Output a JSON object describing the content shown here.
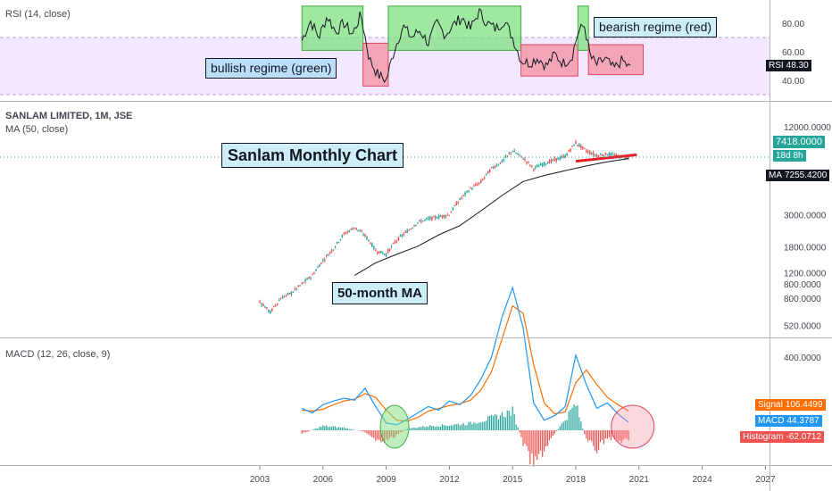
{
  "rsi_panel": {
    "title": "RSI (14, close)",
    "value_label": "RSI",
    "value": "48.30"
  },
  "price_panel": {
    "symbol_line": "SANLAM LIMITED, 1M, JSE",
    "ma_line": "MA (50, close)",
    "last_price": "7418.0000",
    "countdown": "18d 8h",
    "ma_label": "MA",
    "ma_value": "7255.4200"
  },
  "macd_panel": {
    "title": "MACD (12, 26, close, 9)",
    "signal_label": "Signal",
    "signal_value": "106.4499",
    "macd_label": "MACD",
    "macd_value": "44.3787",
    "hist_label": "Histogram",
    "hist_value": "-62.0712"
  },
  "annotations": {
    "bullish": "bullish regime (green)",
    "bearish": "bearish regime (red)",
    "chart_title": "Sanlam Monthly Chart",
    "ma_note": "50-month MA"
  },
  "colors": {
    "bull_candle": "#26a69a",
    "bear_candle": "#ef5350",
    "ma_line": "#131722",
    "rsi_line": "#131722",
    "rsi_band": "#f3e8ff",
    "macd_line": "#2196f3",
    "signal_line": "#ff6d00",
    "bull_zone": "#7fe07f",
    "bear_zone": "#f48fa0",
    "trendline": "#e8202a"
  },
  "chart_data": [
    {
      "type": "line",
      "name": "RSI pane",
      "title": "RSI (14, close)",
      "yticks": [
        "80.00",
        "60.00",
        "40.00"
      ],
      "ylim": [
        25,
        95
      ],
      "levels": [
        70,
        30
      ],
      "regime_zones": [
        {
          "regime": "bullish",
          "start": 2005.0,
          "end": 2007.9,
          "low": 61,
          "high": 92
        },
        {
          "regime": "bearish",
          "start": 2007.9,
          "end": 2009.1,
          "low": 36,
          "high": 66
        },
        {
          "regime": "bullish",
          "start": 2009.1,
          "end": 2015.4,
          "low": 61,
          "high": 92
        },
        {
          "regime": "bearish",
          "start": 2015.4,
          "end": 2018.1,
          "low": 43,
          "high": 65
        },
        {
          "regime": "bullish",
          "start": 2018.1,
          "end": 2018.6,
          "low": 61,
          "high": 92
        },
        {
          "regime": "bearish",
          "start": 2018.6,
          "end": 2021.2,
          "low": 44,
          "high": 65
        }
      ],
      "series": [
        {
          "x": [
            2005.0,
            2005.4,
            2005.8,
            2006.2,
            2006.6,
            2007.0,
            2007.4,
            2007.8,
            2008.2,
            2008.6,
            2009.0,
            2009.4,
            2009.8,
            2010.2,
            2010.6,
            2011.0,
            2011.4,
            2011.8,
            2012.2,
            2012.6,
            2013.0,
            2013.4,
            2013.8,
            2014.2,
            2014.6,
            2015.0,
            2015.4,
            2015.8,
            2016.2,
            2016.6,
            2017.0,
            2017.4,
            2017.8,
            2018.1,
            2018.4,
            2018.7,
            2019.0,
            2019.4,
            2019.8,
            2020.2,
            2020.6
          ],
          "values": [
            68,
            82,
            70,
            85,
            74,
            80,
            72,
            86,
            55,
            44,
            40,
            62,
            78,
            70,
            75,
            66,
            80,
            72,
            79,
            84,
            76,
            88,
            80,
            76,
            82,
            70,
            54,
            52,
            56,
            50,
            58,
            52,
            56,
            73,
            79,
            56,
            51,
            55,
            48,
            54,
            48
          ]
        }
      ]
    },
    {
      "type": "line",
      "name": "Price pane",
      "title": "SANLAM LIMITED, 1M, JSE",
      "scale": "log",
      "yticks": [
        "12000.0000",
        "7418.0000",
        "3000.0000",
        "1800.0000",
        "1200.0000",
        "800.0000",
        "520.0000"
      ],
      "series": [
        {
          "x": [
            2003.0,
            2003.5,
            2004.0,
            2004.5,
            2005.0,
            2005.5,
            2006.0,
            2006.5,
            2007.0,
            2007.5,
            2008.0,
            2008.5,
            2009.0,
            2009.5,
            2010.0,
            2010.5,
            2011.0,
            2011.5,
            2012.0,
            2012.5,
            2013.0,
            2013.5,
            2014.0,
            2014.5,
            2015.0,
            2015.5,
            2016.0,
            2016.5,
            2017.0,
            2017.5,
            2018.0,
            2018.5,
            2019.0,
            2019.5,
            2020.0,
            2020.5
          ],
          "values": [
            760,
            640,
            800,
            870,
            1000,
            1150,
            1450,
            1750,
            2200,
            2450,
            2150,
            1700,
            1600,
            2000,
            2300,
            2650,
            2800,
            2900,
            3000,
            3800,
            4500,
            5000,
            6200,
            6900,
            8200,
            7300,
            6200,
            6700,
            7100,
            7500,
            9300,
            8200,
            7600,
            7800,
            7500,
            7418
          ]
        },
        {
          "x": [
            2007.5,
            2008.5,
            2009.5,
            2010.5,
            2011.5,
            2012.5,
            2013.5,
            2014.5,
            2015.5,
            2016.5,
            2017.5,
            2018.5,
            2019.5,
            2020.5
          ],
          "values": [
            1150,
            1400,
            1600,
            1820,
            2180,
            2520,
            3180,
            4050,
            5050,
            5550,
            6000,
            6450,
            6880,
            7255
          ]
        }
      ]
    },
    {
      "type": "line",
      "name": "MACD pane",
      "title": "MACD (12, 26, close, 9)",
      "yticks": [
        "800.0000",
        "400.0000"
      ],
      "series": [
        {
          "x": [
            2005.0,
            2005.5,
            2006.0,
            2006.5,
            2007.0,
            2007.5,
            2008.0,
            2008.5,
            2009.0,
            2009.5,
            2010.0,
            2010.5,
            2011.0,
            2011.5,
            2012.0,
            2012.5,
            2013.0,
            2013.5,
            2014.0,
            2014.5,
            2015.0,
            2015.5,
            2016.0,
            2016.5,
            2017.0,
            2017.5,
            2018.0,
            2018.5,
            2019.0,
            2019.5,
            2020.0,
            2020.5
          ],
          "values": [
            120,
            95,
            140,
            160,
            175,
            165,
            230,
            130,
            40,
            30,
            60,
            95,
            130,
            110,
            160,
            140,
            190,
            280,
            400,
            620,
            780,
            560,
            150,
            55,
            80,
            130,
            410,
            250,
            120,
            150,
            90,
            44
          ]
        },
        {
          "x": [
            2005.0,
            2005.5,
            2006.0,
            2006.5,
            2007.0,
            2007.5,
            2008.0,
            2008.5,
            2009.0,
            2009.5,
            2010.0,
            2010.5,
            2011.0,
            2011.5,
            2012.0,
            2012.5,
            2013.0,
            2013.5,
            2014.0,
            2014.5,
            2015.0,
            2015.5,
            2016.0,
            2016.5,
            2017.0,
            2017.5,
            2018.0,
            2018.5,
            2019.0,
            2019.5,
            2020.0,
            2020.5
          ],
          "values": [
            110,
            105,
            115,
            140,
            160,
            170,
            200,
            180,
            110,
            55,
            50,
            70,
            105,
            120,
            135,
            145,
            165,
            220,
            320,
            500,
            680,
            640,
            360,
            150,
            90,
            100,
            260,
            330,
            250,
            180,
            140,
            106
          ]
        },
        {
          "x": [
            2005.0,
            2006.0,
            2007.0,
            2008.0,
            2008.5,
            2009.0,
            2009.5,
            2010.0,
            2011.0,
            2012.0,
            2013.0,
            2014.0,
            2015.0,
            2015.5,
            2016.0,
            2016.5,
            2017.0,
            2018.0,
            2018.5,
            2019.0,
            2019.5,
            2020.0,
            2020.5
          ],
          "values": [
            -20,
            25,
            15,
            -10,
            -50,
            -60,
            -30,
            10,
            25,
            30,
            40,
            70,
            110,
            -80,
            -200,
            -110,
            -20,
            150,
            -60,
            -110,
            -40,
            -60,
            -62
          ]
        }
      ]
    },
    {
      "type": "line",
      "name": "time axis",
      "xticks": [
        "2003",
        "2006",
        "2009",
        "2012",
        "2015",
        "2018",
        "2021",
        "2024",
        "2027"
      ]
    }
  ]
}
